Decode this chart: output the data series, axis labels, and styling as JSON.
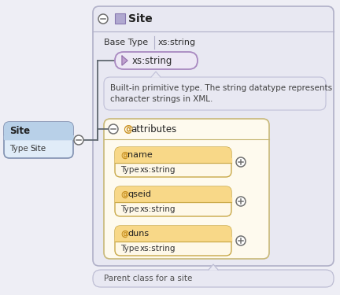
{
  "bg_color": "#eeeef5",
  "main_panel_color": "#e8e8f2",
  "main_panel_border": "#b0b0c8",
  "site_title": "Site",
  "base_type_label": "Base Type",
  "base_type_value": "xs:string",
  "xs_string_label": "xs:string",
  "xs_string_bg": "#ede8f5",
  "xs_string_border": "#a888c0",
  "tooltip_text1": "Built-in primitive type. The string datatype represents",
  "tooltip_text2": "character strings in XML.",
  "tooltip_bg": "#e8e8f2",
  "tooltip_border": "#c0c0d8",
  "attributes_label": "attributes",
  "attributes_panel_bg": "#fefaee",
  "attributes_panel_border": "#c8b878",
  "attr_items": [
    {
      "name": "name",
      "type": "xs:string"
    },
    {
      "name": "qseid",
      "type": "xs:string"
    },
    {
      "name": "duns",
      "type": "xs:string"
    }
  ],
  "attr_item_bg_top": "#f8d888",
  "attr_item_bg_bot": "#fef8e8",
  "attr_item_border": "#c8a848",
  "left_box_title": "Site",
  "left_box_type_label": "Type",
  "left_box_type_value": "Site",
  "left_box_bg_top": "#b8d0e8",
  "left_box_bg_bot": "#e0ecf8",
  "left_box_border": "#8090b0",
  "footer_text": "Parent class for a site",
  "footer_bg": "#e8e8f2",
  "footer_border": "#b8b8d0",
  "minus_circle_color": "#707070",
  "plus_circle_color": "#707070",
  "line_color": "#606870",
  "icon_color": "#b0a8d0",
  "icon_border": "#8878b0",
  "at_color": "#c89020",
  "title_fontsize": 9,
  "body_fontsize": 8,
  "small_fontsize": 7.5
}
